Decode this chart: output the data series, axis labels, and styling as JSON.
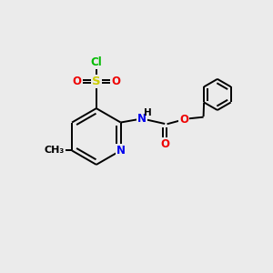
{
  "background_color": "#ebebeb",
  "atom_colors": {
    "C": "#000000",
    "N": "#0000ee",
    "O": "#ee0000",
    "S": "#cccc00",
    "Cl": "#00bb00",
    "H": "#000000"
  },
  "bond_color": "#000000",
  "bond_width": 1.4,
  "font_size": 8.5
}
